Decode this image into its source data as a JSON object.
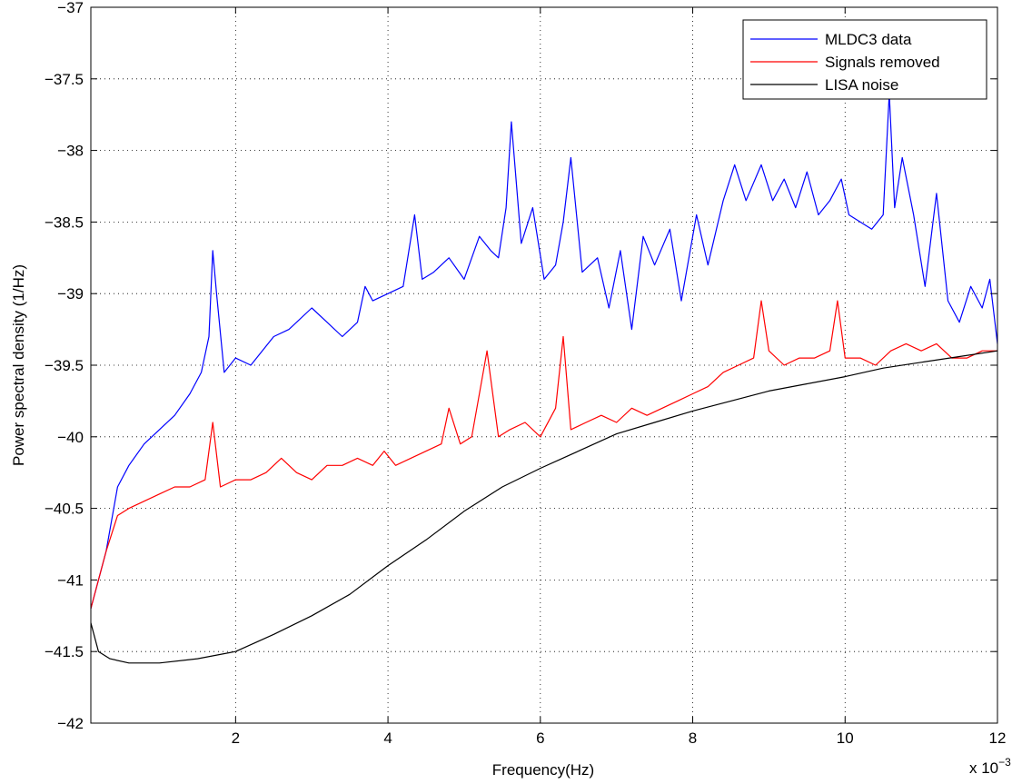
{
  "chart_data": {
    "type": "line",
    "xlabel": "Frequency(Hz)",
    "ylabel": "Power spectral density (1/Hz)",
    "x_multiplier": "x 10",
    "x_multiplier_exponent": "−3",
    "xlim": [
      0.1,
      12
    ],
    "ylim": [
      -42,
      -37
    ],
    "xticks": [
      2,
      4,
      6,
      8,
      10,
      12
    ],
    "xtick_labels": [
      "2",
      "4",
      "6",
      "8",
      "10",
      "12"
    ],
    "yticks": [
      -42,
      -41.5,
      -41,
      -40.5,
      -40,
      -39.5,
      -39,
      -38.5,
      -38,
      -37.5,
      -37
    ],
    "ytick_labels": [
      "−42",
      "−41.5",
      "−41",
      "−40.5",
      "−40",
      "−39.5",
      "−39",
      "−38.5",
      "−38",
      "−37.5",
      "−37"
    ],
    "grid": true,
    "legend_position": "top-right",
    "series": [
      {
        "name": "MLDC3 data",
        "color": "#0000ff",
        "x": [
          0.1,
          0.3,
          0.45,
          0.6,
          0.8,
          1.0,
          1.2,
          1.4,
          1.55,
          1.65,
          1.7,
          1.75,
          1.85,
          2.0,
          2.2,
          2.5,
          2.7,
          3.0,
          3.2,
          3.4,
          3.6,
          3.7,
          3.8,
          4.0,
          4.2,
          4.35,
          4.45,
          4.6,
          4.8,
          5.0,
          5.2,
          5.35,
          5.45,
          5.55,
          5.62,
          5.75,
          5.9,
          6.05,
          6.2,
          6.3,
          6.4,
          6.55,
          6.75,
          6.9,
          7.05,
          7.2,
          7.35,
          7.5,
          7.7,
          7.85,
          8.05,
          8.2,
          8.4,
          8.55,
          8.7,
          8.9,
          9.05,
          9.2,
          9.35,
          9.5,
          9.65,
          9.8,
          9.95,
          10.05,
          10.2,
          10.35,
          10.5,
          10.58,
          10.65,
          10.75,
          10.9,
          11.05,
          11.2,
          11.35,
          11.5,
          11.65,
          11.8,
          11.9,
          12.0
        ],
        "y": [
          -41.2,
          -40.8,
          -40.35,
          -40.2,
          -40.05,
          -39.95,
          -39.85,
          -39.7,
          -39.55,
          -39.3,
          -38.7,
          -39.0,
          -39.55,
          -39.45,
          -39.5,
          -39.3,
          -39.25,
          -39.1,
          -39.2,
          -39.3,
          -39.2,
          -38.95,
          -39.05,
          -39.0,
          -38.95,
          -38.45,
          -38.9,
          -38.85,
          -38.75,
          -38.9,
          -38.6,
          -38.7,
          -38.75,
          -38.4,
          -37.8,
          -38.65,
          -38.4,
          -38.9,
          -38.8,
          -38.5,
          -38.05,
          -38.85,
          -38.75,
          -39.1,
          -38.7,
          -39.25,
          -38.6,
          -38.8,
          -38.55,
          -39.05,
          -38.45,
          -38.8,
          -38.35,
          -38.1,
          -38.35,
          -38.1,
          -38.35,
          -38.2,
          -38.4,
          -38.15,
          -38.45,
          -38.35,
          -38.2,
          -38.45,
          -38.5,
          -38.55,
          -38.45,
          -37.6,
          -38.4,
          -38.05,
          -38.45,
          -38.95,
          -38.3,
          -39.05,
          -39.2,
          -38.95,
          -39.1,
          -38.9,
          -39.35
        ]
      },
      {
        "name": "Signals removed",
        "color": "#ff0000",
        "x": [
          0.1,
          0.3,
          0.45,
          0.6,
          0.8,
          1.0,
          1.2,
          1.4,
          1.6,
          1.7,
          1.8,
          2.0,
          2.2,
          2.4,
          2.6,
          2.8,
          3.0,
          3.2,
          3.4,
          3.6,
          3.8,
          3.95,
          4.1,
          4.3,
          4.5,
          4.7,
          4.8,
          4.95,
          5.1,
          5.3,
          5.45,
          5.6,
          5.8,
          6.0,
          6.2,
          6.3,
          6.4,
          6.6,
          6.8,
          7.0,
          7.2,
          7.4,
          7.6,
          7.8,
          8.0,
          8.2,
          8.4,
          8.6,
          8.8,
          8.9,
          9.0,
          9.2,
          9.4,
          9.6,
          9.8,
          9.9,
          10.0,
          10.2,
          10.4,
          10.6,
          10.8,
          11.0,
          11.2,
          11.4,
          11.6,
          11.8,
          12.0
        ],
        "y": [
          -41.2,
          -40.8,
          -40.55,
          -40.5,
          -40.45,
          -40.4,
          -40.35,
          -40.35,
          -40.3,
          -39.9,
          -40.35,
          -40.3,
          -40.3,
          -40.25,
          -40.15,
          -40.25,
          -40.3,
          -40.2,
          -40.2,
          -40.15,
          -40.2,
          -40.1,
          -40.2,
          -40.15,
          -40.1,
          -40.05,
          -39.8,
          -40.05,
          -40.0,
          -39.4,
          -40.0,
          -39.95,
          -39.9,
          -40.0,
          -39.8,
          -39.3,
          -39.95,
          -39.9,
          -39.85,
          -39.9,
          -39.8,
          -39.85,
          -39.8,
          -39.75,
          -39.7,
          -39.65,
          -39.55,
          -39.5,
          -39.45,
          -39.05,
          -39.4,
          -39.5,
          -39.45,
          -39.45,
          -39.4,
          -39.05,
          -39.45,
          -39.45,
          -39.5,
          -39.4,
          -39.35,
          -39.4,
          -39.35,
          -39.45,
          -39.45,
          -39.4,
          -39.4
        ]
      },
      {
        "name": "LISA noise",
        "color": "#000000",
        "x": [
          0.1,
          0.2,
          0.35,
          0.6,
          1.0,
          1.5,
          2.0,
          2.5,
          3.0,
          3.5,
          4.0,
          4.5,
          5.0,
          5.5,
          6.0,
          6.5,
          7.0,
          7.5,
          8.0,
          8.5,
          9.0,
          9.5,
          10.0,
          10.5,
          11.0,
          11.5,
          12.0
        ],
        "y": [
          -41.3,
          -41.5,
          -41.55,
          -41.58,
          -41.58,
          -41.55,
          -41.5,
          -41.38,
          -41.25,
          -41.1,
          -40.9,
          -40.72,
          -40.52,
          -40.35,
          -40.22,
          -40.1,
          -39.98,
          -39.9,
          -39.82,
          -39.75,
          -39.68,
          -39.63,
          -39.58,
          -39.52,
          -39.48,
          -39.44,
          -39.4
        ]
      }
    ]
  }
}
